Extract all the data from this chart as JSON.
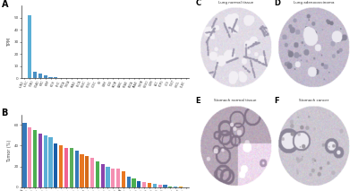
{
  "panel_A": {
    "label": "A",
    "ylabel": "TPM",
    "categories": [
      "LUAD",
      "LUSC",
      "STAD",
      "COAD",
      "KIRC",
      "KIRP",
      "KICH",
      "LIHC",
      "BRCA",
      "THCA",
      "PRAD",
      "BLCA",
      "HNSC",
      "CESC",
      "UCEC",
      "OV",
      "GBM",
      "LGG",
      "SKCM",
      "SARC",
      "READ",
      "ESCA",
      "PAAD",
      "THYM",
      "MESO",
      "UVM",
      "ACC",
      "PCPG",
      "UCS",
      "TGCT",
      "CHOL",
      "DLBC"
    ],
    "values": [
      0.45,
      52,
      5.8,
      4.2,
      2.6,
      1.1,
      0.75,
      0.55,
      0.45,
      0.38,
      0.28,
      0.22,
      0.18,
      0.16,
      0.13,
      0.11,
      0.09,
      0.08,
      0.07,
      0.065,
      0.055,
      0.05,
      0.045,
      0.04,
      0.035,
      0.03,
      0.028,
      0.022,
      0.018,
      0.014,
      0.01,
      0.007
    ],
    "colors": [
      "#e8813a",
      "#5bafd6",
      "#4a90c4",
      "#4a90c4",
      "#4a90c4",
      "#4a90c4",
      "#4a90c4",
      "#4a90c4",
      "#4a90c4",
      "#4a90c4",
      "#4a90c4",
      "#4a90c4",
      "#4a90c4",
      "#4a90c4",
      "#4a90c4",
      "#4a90c4",
      "#4a90c4",
      "#4a90c4",
      "#4a90c4",
      "#4a90c4",
      "#4a90c4",
      "#4a90c4",
      "#4a90c4",
      "#4a90c4",
      "#4a90c4",
      "#4a90c4",
      "#4a90c4",
      "#4a90c4",
      "#4a90c4",
      "#4a90c4",
      "#4a90c4",
      "#4a90c4"
    ],
    "ylim": [
      0,
      60
    ],
    "yticks": [
      0,
      10,
      20,
      30,
      40,
      50
    ]
  },
  "panel_B": {
    "label": "B",
    "ylabel": "Tumor (%)",
    "categories": [
      "THCA",
      "BRCA",
      "LUAD",
      "UCEC",
      "PRAD",
      "KIRC",
      "BLCA",
      "COAD",
      "HNSC",
      "LUSC",
      "STAD",
      "LIHC",
      "SKCM",
      "CESC",
      "KIRP",
      "OV",
      "PAAD",
      "ESCA",
      "READ",
      "THYM",
      "ACC",
      "SARC",
      "KICH",
      "PCPG",
      "GBM",
      "UVM",
      "UCS",
      "LGG",
      "CHOL",
      "DLBC",
      "TGCT",
      "MESO"
    ],
    "values": [
      62,
      58,
      55,
      52,
      50,
      48,
      42,
      40,
      38,
      38,
      35,
      32,
      30,
      28,
      25,
      22,
      20,
      18,
      18,
      15,
      10,
      8,
      6,
      5,
      4,
      3,
      2,
      2,
      1,
      1,
      0.5,
      0.2
    ],
    "colors": [
      "#3578b9",
      "#f48fb1",
      "#4caf50",
      "#8b44ac",
      "#5bafd6",
      "#5bafd6",
      "#1a5fa8",
      "#e87722",
      "#f06292",
      "#5aad5a",
      "#3578b9",
      "#e87722",
      "#d46a1a",
      "#f48fb1",
      "#4caf50",
      "#8b44ac",
      "#5bafd6",
      "#f48fb1",
      "#f48fb1",
      "#e87722",
      "#3578b9",
      "#4caf50",
      "#1a5fa8",
      "#f48fb1",
      "#e87722",
      "#5bafd6",
      "#f48fb1",
      "#3578b9",
      "#4caf50",
      "#5bafd6",
      "#f9a825",
      "#e87722"
    ],
    "ylim": [
      0,
      70
    ],
    "yticks": [
      0,
      20,
      40,
      60
    ]
  },
  "images": [
    {
      "label": "C",
      "title": "Lung normal tissue",
      "row": 0,
      "col": 0,
      "bg": "#f0f0f0",
      "circle_base": 0.82,
      "hue": [
        0.58,
        0.05,
        0.75
      ],
      "style": "lung_normal"
    },
    {
      "label": "D",
      "title": "Lung adenocarcinoma",
      "row": 0,
      "col": 1,
      "bg": "#f0f0f0",
      "circle_base": 0.72,
      "hue": [
        0.75,
        0.08,
        0.65
      ],
      "style": "lung_cancer"
    },
    {
      "label": "E",
      "title": "Stomach normal tissue",
      "row": 1,
      "col": 0,
      "bg": "#f0f0f0",
      "circle_base": 0.68,
      "hue": [
        0.75,
        0.12,
        0.6
      ],
      "style": "stomach_normal"
    },
    {
      "label": "F",
      "title": "Stomach cancer",
      "row": 1,
      "col": 1,
      "bg": "#f0f0f0",
      "circle_base": 0.78,
      "hue": [
        0.62,
        0.06,
        0.72
      ],
      "style": "stomach_cancer"
    }
  ],
  "bg_color": "#ffffff",
  "panel_bg": "#ffffff"
}
